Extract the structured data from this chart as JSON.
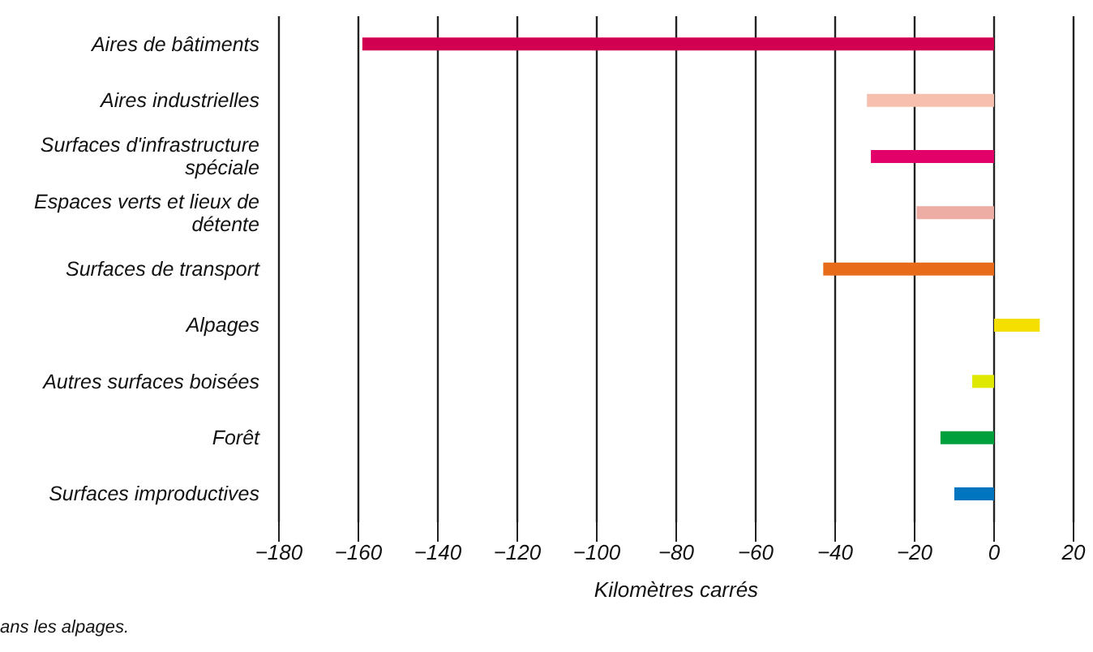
{
  "chart_data": {
    "type": "bar",
    "orientation": "horizontal",
    "xlabel": "Kilomètres carrés",
    "categories": [
      "Aires de bâtiments",
      "Aires industrielles",
      "Surfaces d'infrastructure spéciale",
      "Espaces verts et lieux de détente",
      "Surfaces de transport",
      "Alpages",
      "Autres surfaces boisées",
      "Forêt",
      "Surfaces improductives"
    ],
    "values": [
      -159,
      -32,
      -31,
      -19.5,
      -43,
      11.5,
      -5.5,
      -13.5,
      -10
    ],
    "colors": [
      "#d20050",
      "#f7c0ae",
      "#e20069",
      "#edaca4",
      "#e86b1a",
      "#f5df00",
      "#dfe800",
      "#00a03c",
      "#0075bf"
    ],
    "xlim": [
      -180,
      20
    ],
    "xticks": [
      {
        "value": -180,
        "label": "−180"
      },
      {
        "value": -160,
        "label": "−160"
      },
      {
        "value": -140,
        "label": "−140"
      },
      {
        "value": -120,
        "label": "−120"
      },
      {
        "value": -100,
        "label": "−100"
      },
      {
        "value": -80,
        "label": "−80"
      },
      {
        "value": -60,
        "label": "−60"
      },
      {
        "value": -40,
        "label": "−40"
      },
      {
        "value": -20,
        "label": "−20"
      },
      0,
      20
    ],
    "grid": "x",
    "annotations": [
      "ans les alpages."
    ]
  }
}
